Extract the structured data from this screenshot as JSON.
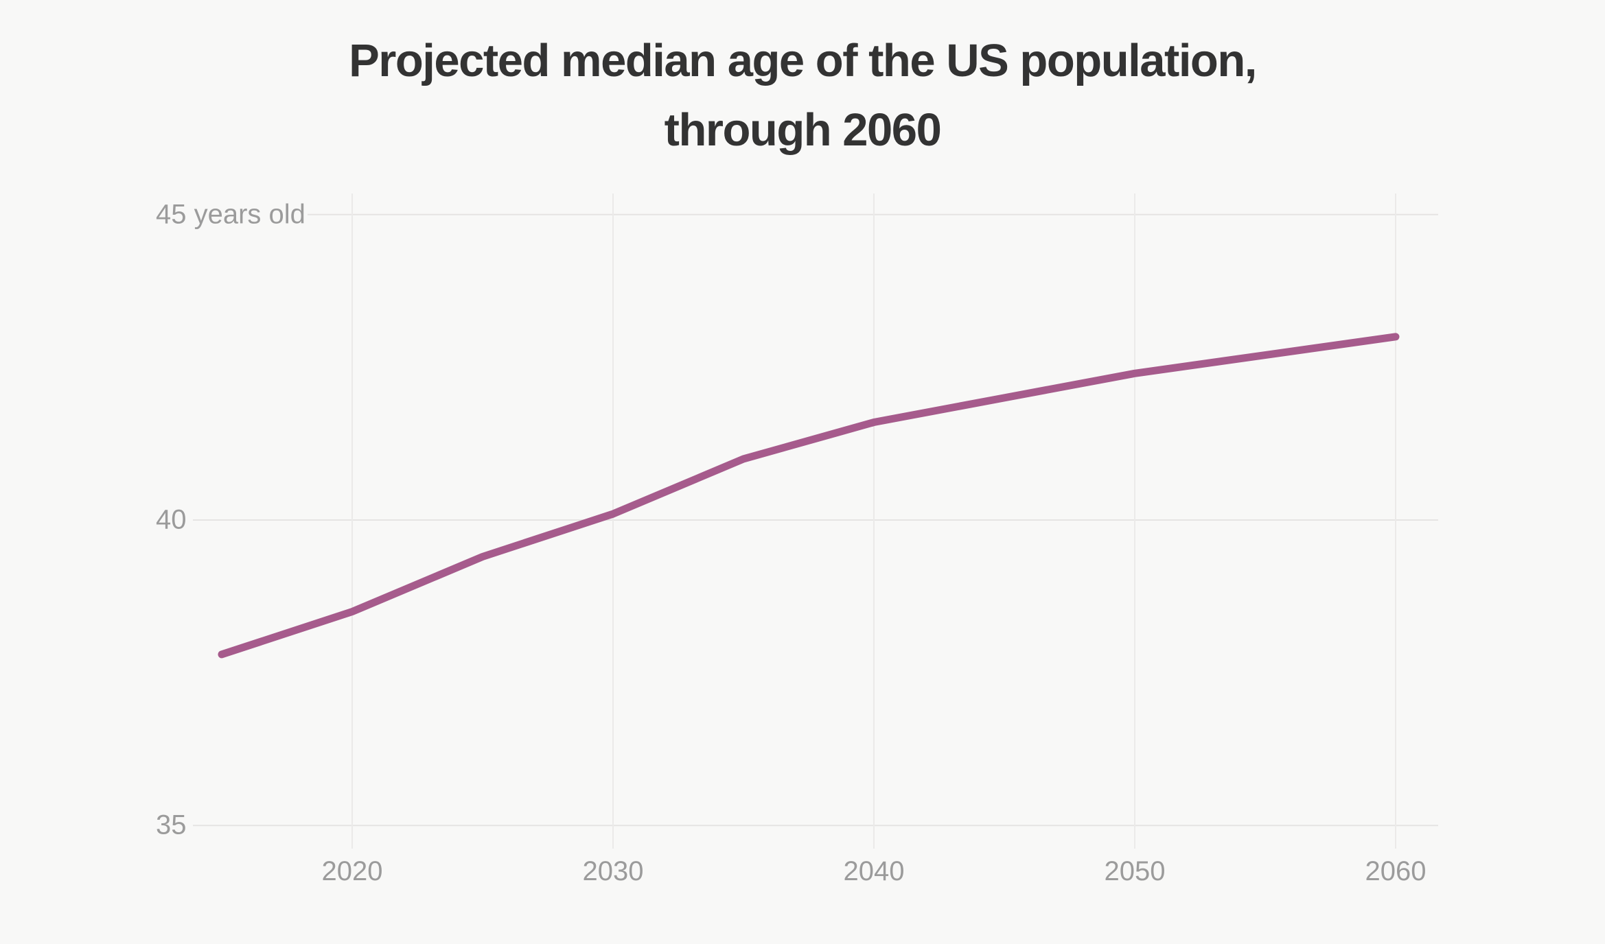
{
  "title": {
    "line1": "Projected median age of the US population,",
    "line2": "through 2060"
  },
  "chart_data": {
    "type": "line",
    "title": "Projected median age of the US population, through 2060",
    "series_name": "Projected median age",
    "x": [
      2015,
      2020,
      2025,
      2030,
      2035,
      2040,
      2045,
      2050,
      2055,
      2060
    ],
    "values": [
      37.8,
      38.5,
      39.4,
      40.1,
      41.0,
      41.6,
      42.0,
      42.4,
      42.7,
      43.0
    ],
    "xlabel": "",
    "ylabel": "years old",
    "xlim": [
      2015,
      2061.6
    ],
    "ylim": [
      34.5,
      45.4
    ],
    "x_ticks": [
      2020,
      2030,
      2040,
      2050,
      2060
    ],
    "x_tick_labels": [
      "2020",
      "2030",
      "2040",
      "2050",
      "2060"
    ],
    "y_ticks": [
      45,
      40,
      35
    ],
    "y_tick_labels": [
      "45 years old",
      "40",
      "35"
    ],
    "grid": "on",
    "legend_position": "none",
    "line_color": "#a65b8c",
    "background_color": "#f8f8f7",
    "grid_color_horizontal": "#e5e4e3",
    "grid_color_vertical": "#ebeae9",
    "tick_text_color": "#9b9b9b",
    "title_color": "#333333"
  }
}
